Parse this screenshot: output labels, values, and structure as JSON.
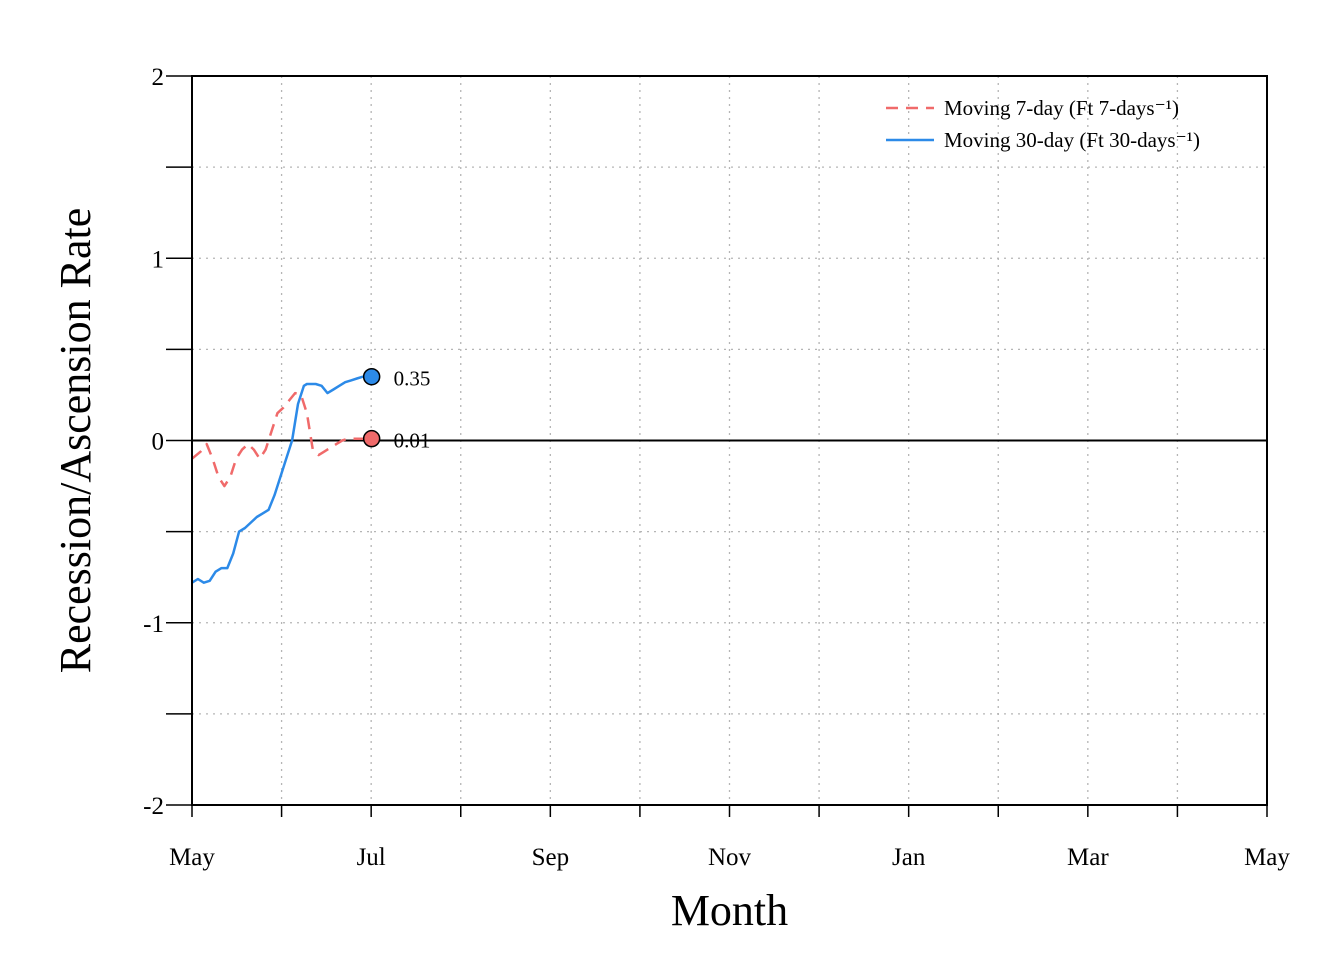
{
  "chart_data": {
    "type": "line",
    "xlabel": "Month",
    "ylabel": "Recession/Ascension Rate",
    "x_ticks": [
      "May",
      "Jul",
      "Sep",
      "Nov",
      "Jan",
      "Mar",
      "May"
    ],
    "x_range_days": [
      0,
      365
    ],
    "ylim": [
      -2,
      2
    ],
    "y_ticks": [
      -2,
      -1,
      0,
      1,
      2
    ],
    "grid": true,
    "zero_line": true,
    "legend_position": "top-right",
    "series": [
      {
        "name": "Moving 7-day (Ft 7-days⁻¹)",
        "color": "#f06a6a",
        "style": "dashed",
        "x": [
          0,
          3,
          5,
          7,
          9,
          11,
          13,
          15,
          17,
          19,
          21,
          23,
          25,
          27,
          29,
          31,
          33,
          35,
          37,
          39,
          41,
          43,
          45,
          47,
          49,
          51,
          53,
          55,
          57,
          59,
          61
        ],
        "values": [
          -0.1,
          -0.06,
          -0.02,
          -0.1,
          -0.2,
          -0.25,
          -0.2,
          -0.1,
          -0.05,
          -0.02,
          -0.05,
          -0.1,
          -0.05,
          0.05,
          0.15,
          0.18,
          0.22,
          0.26,
          0.25,
          0.15,
          -0.05,
          -0.08,
          -0.06,
          -0.04,
          -0.02,
          0.0,
          0.01,
          0.01,
          0.01,
          0.01,
          0.01
        ]
      },
      {
        "name": "Moving 30-day (Ft 30-days⁻¹)",
        "color": "#2c8ae8",
        "style": "solid",
        "x": [
          0,
          2,
          4,
          6,
          8,
          10,
          12,
          14,
          16,
          18,
          20,
          22,
          24,
          26,
          28,
          30,
          32,
          34,
          36,
          38,
          39,
          40,
          42,
          44,
          46,
          48,
          50,
          52,
          54,
          56,
          58,
          61
        ],
        "values": [
          -0.78,
          -0.76,
          -0.78,
          -0.77,
          -0.72,
          -0.7,
          -0.7,
          -0.62,
          -0.5,
          -0.48,
          -0.45,
          -0.42,
          -0.4,
          -0.38,
          -0.3,
          -0.2,
          -0.1,
          0.0,
          0.2,
          0.3,
          0.31,
          0.31,
          0.31,
          0.3,
          0.26,
          0.28,
          0.3,
          0.32,
          0.33,
          0.34,
          0.35,
          0.35
        ]
      }
    ],
    "end_points": [
      {
        "label": "0.35",
        "x": 61,
        "y": 0.35,
        "color": "#2c8ae8"
      },
      {
        "label": "0.01",
        "x": 61,
        "y": 0.01,
        "color": "#f06a6a"
      }
    ]
  }
}
